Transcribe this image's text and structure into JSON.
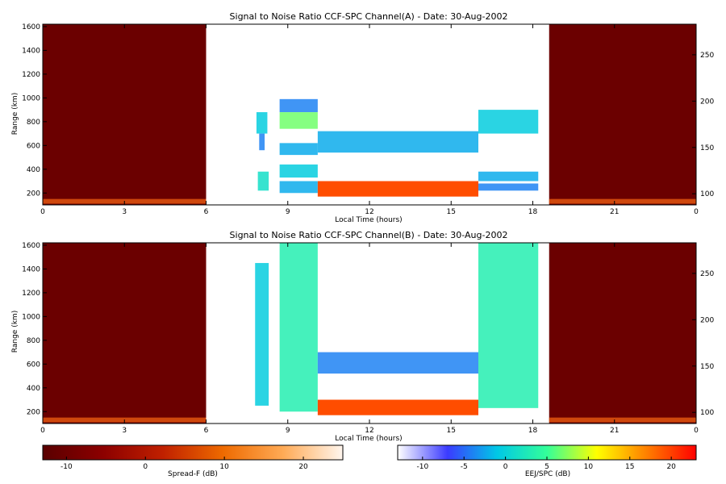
{
  "chart_data": [
    {
      "type": "heatmap",
      "title": "Signal to Noise Ratio CCF-SPC Channel(A) - Date: 30-Aug-2002",
      "xlabel": "Local Time (hours)",
      "ylabel": "Range (km)",
      "right_axis_ticks": [
        "100",
        "150",
        "200",
        "250"
      ],
      "x_ticks": [
        "0",
        "3",
        "6",
        "9",
        "12",
        "15",
        "18",
        "21",
        "0"
      ],
      "y_ticks": [
        "200",
        "400",
        "600",
        "800",
        "1000",
        "1200",
        "1400",
        "1600"
      ],
      "xlim": [
        0,
        24
      ],
      "ylim": [
        100,
        1620
      ],
      "right_ylim": [
        88,
        283
      ],
      "night_segments": [
        [
          0,
          6
        ],
        [
          18.6,
          24
        ]
      ],
      "night_colormap": "Spread-F",
      "night_base_color": "#6b0000",
      "blobs": [
        {
          "x": [
            7.85,
            8.25
          ],
          "y": [
            700,
            880
          ],
          "level": 0.35
        },
        {
          "x": [
            7.95,
            8.15
          ],
          "y": [
            560,
            700
          ],
          "level": 0.25
        },
        {
          "x": [
            7.9,
            8.3
          ],
          "y": [
            220,
            380
          ],
          "level": 0.4
        },
        {
          "x": [
            8.7,
            10.1
          ],
          "y": [
            880,
            990
          ],
          "level": 0.25
        },
        {
          "x": [
            8.7,
            10.1
          ],
          "y": [
            740,
            880
          ],
          "level": 0.55
        },
        {
          "x": [
            8.7,
            10.1
          ],
          "y": [
            520,
            620
          ],
          "level": 0.3
        },
        {
          "x": [
            8.7,
            10.1
          ],
          "y": [
            330,
            440
          ],
          "level": 0.35
        },
        {
          "x": [
            8.7,
            10.1
          ],
          "y": [
            200,
            300
          ],
          "level": 0.3
        },
        {
          "x": [
            10.1,
            16.0
          ],
          "y": [
            540,
            720
          ],
          "level": 0.3
        },
        {
          "x": [
            10.1,
            16.0
          ],
          "y": [
            170,
            300
          ],
          "level": 0.9
        },
        {
          "x": [
            16.0,
            18.2
          ],
          "y": [
            700,
            900
          ],
          "level": 0.35
        },
        {
          "x": [
            16.0,
            18.2
          ],
          "y": [
            300,
            380
          ],
          "level": 0.3
        },
        {
          "x": [
            16.0,
            18.2
          ],
          "y": [
            220,
            280
          ],
          "level": 0.25
        }
      ]
    },
    {
      "type": "heatmap",
      "title": "Signal to Noise Ratio CCF-SPC Channel(B) - Date: 30-Aug-2002",
      "xlabel": "Local Time (hours)",
      "ylabel": "Range (km)",
      "right_axis_ticks": [
        "100",
        "150",
        "200",
        "250"
      ],
      "x_ticks": [
        "0",
        "3",
        "6",
        "9",
        "12",
        "15",
        "18",
        "21",
        "0"
      ],
      "y_ticks": [
        "200",
        "400",
        "600",
        "800",
        "1000",
        "1200",
        "1400",
        "1600"
      ],
      "xlim": [
        0,
        24
      ],
      "ylim": [
        100,
        1620
      ],
      "right_ylim": [
        88,
        283
      ],
      "night_segments": [
        [
          0,
          6
        ],
        [
          18.6,
          24
        ]
      ],
      "night_colormap": "Spread-F",
      "night_base_color": "#6b0000",
      "blobs": [
        {
          "x": [
            7.8,
            8.3
          ],
          "y": [
            250,
            1450
          ],
          "level": 0.35
        },
        {
          "x": [
            8.7,
            10.1
          ],
          "y": [
            200,
            1620
          ],
          "level": 0.45
        },
        {
          "x": [
            10.1,
            16.0
          ],
          "y": [
            520,
            700
          ],
          "level": 0.25
        },
        {
          "x": [
            10.1,
            16.0
          ],
          "y": [
            170,
            300
          ],
          "level": 0.9
        },
        {
          "x": [
            16.0,
            18.2
          ],
          "y": [
            230,
            1650
          ],
          "level": 0.45
        }
      ]
    }
  ],
  "colorbars": [
    {
      "label": "Spread-F (dB)",
      "ticks": [
        "-10",
        "0",
        "10",
        "20"
      ],
      "range": [
        -13,
        25
      ],
      "stops": [
        "#5a0000",
        "#8c0000",
        "#c02000",
        "#ee6a00",
        "#ffaa55",
        "#fff6ee"
      ]
    },
    {
      "label": "EEJ/SPC (dB)",
      "ticks": [
        "-10",
        "-5",
        "0",
        "5",
        "10",
        "15",
        "20"
      ],
      "range": [
        -13,
        23
      ],
      "stops": [
        "#ffffff",
        "#3b3bff",
        "#00c8e6",
        "#33ff99",
        "#ffff00",
        "#ff8000",
        "#ff0000"
      ]
    }
  ]
}
